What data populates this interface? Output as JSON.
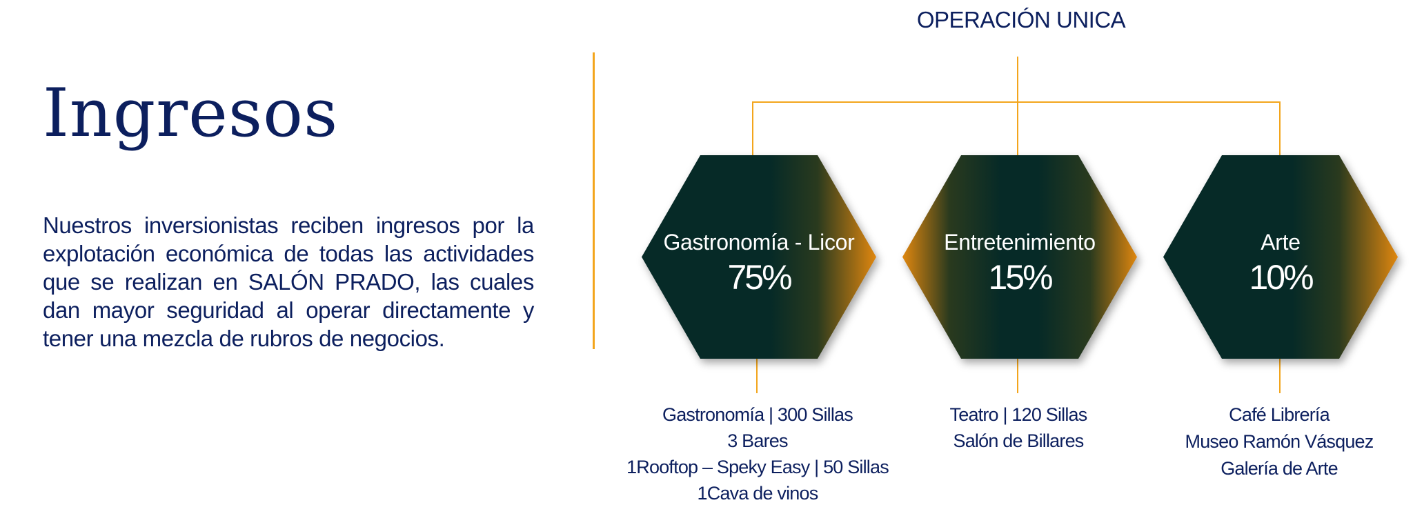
{
  "title": "Ingresos",
  "description": "Nuestros inversionistas reciben ingresos por la explotación económica de todas las actividades que se realizan en SALÓN PRADO, las cuales dan mayor seguridad al operar directamente y tener una mezcla de rubros de negocios.",
  "diagram": {
    "root": "OPERACIÓN UNICA",
    "colors": {
      "line": "#f3a51c",
      "hex_dark": "#062a27",
      "hex_accent": "#e0870f",
      "text": "#0c1f5e"
    },
    "nodes": [
      {
        "name": "Gastronomía - Licor",
        "percent": "75%",
        "details": [
          "Gastronomía | 300 Sillas",
          "3 Bares",
          "1Rooftop – Speky Easy  | 50 Sillas",
          "1Cava de vinos"
        ]
      },
      {
        "name": "Entretenimiento",
        "percent": "15%",
        "details": [
          "Teatro | 120 Sillas",
          "Salón de Billares"
        ]
      },
      {
        "name": "Arte",
        "percent": "10%",
        "details": [
          "Café Librería",
          "Museo Ramón Vásquez",
          "Galería de Arte"
        ]
      }
    ]
  }
}
